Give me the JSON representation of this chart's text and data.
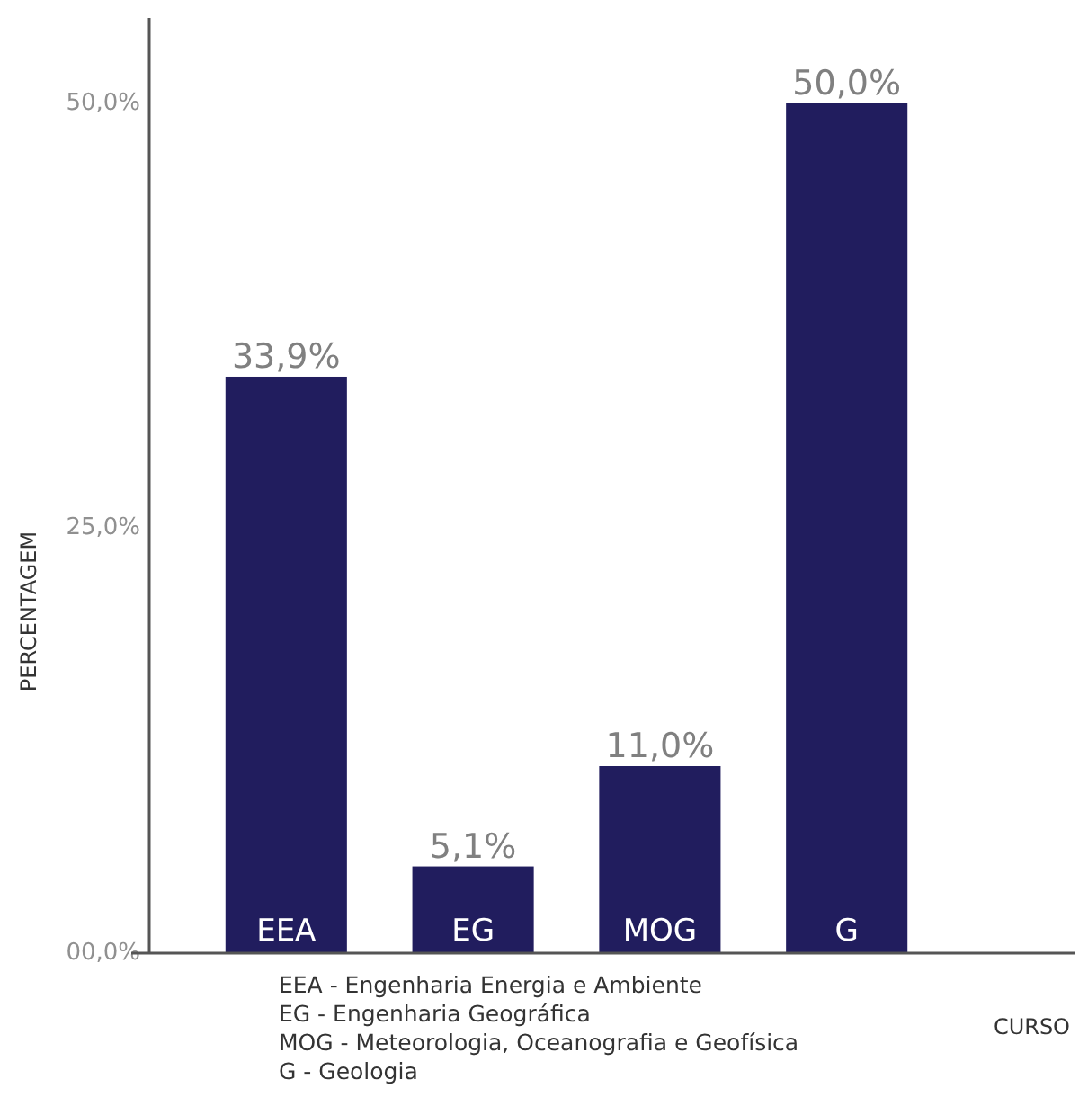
{
  "chart_data": {
    "type": "bar",
    "xlabel": "CURSO",
    "ylabel": "PERCENTAGEM",
    "categories": [
      "EEA",
      "EG",
      "MOG",
      "G"
    ],
    "values": [
      33.9,
      5.1,
      11.0,
      50.0
    ],
    "value_labels": [
      "33,9%",
      "5,1%",
      "11,0%",
      "50,0%"
    ],
    "color": "#211d5e",
    "ylim": [
      0,
      55
    ],
    "yticks": [
      {
        "value": 0,
        "label": "00,0%"
      },
      {
        "value": 25,
        "label": "25,0%"
      },
      {
        "value": 50,
        "label": "50,0%"
      }
    ],
    "grid": false,
    "annotations": [
      "EEA - Engenharia Energia e Ambiente",
      "EG - Engenharia Geográfica",
      "MOG - Meteorologia, Oceanografia e Geofísica",
      "G - Geologia"
    ]
  }
}
